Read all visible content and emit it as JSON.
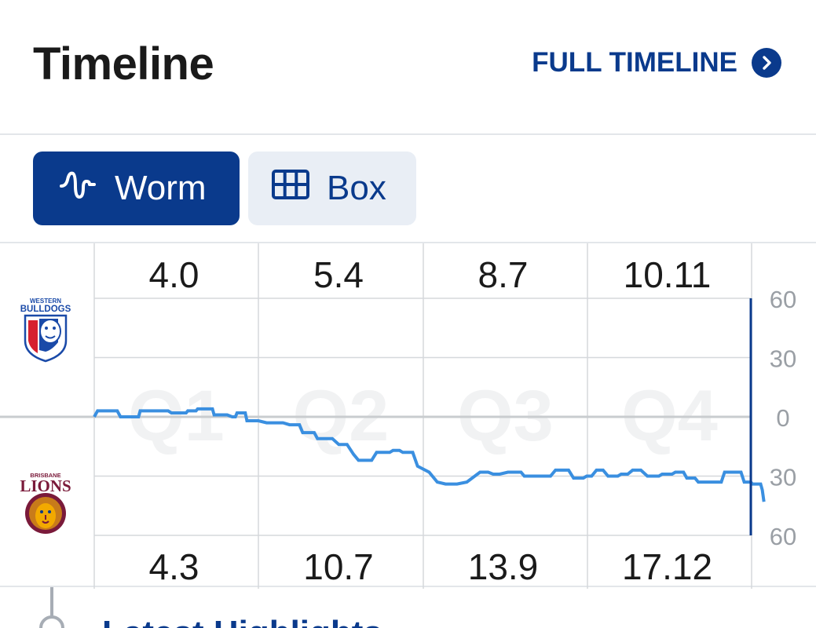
{
  "header": {
    "title": "Timeline",
    "full_timeline_label": "FULL TIMELINE"
  },
  "view_toggle": {
    "worm_label": "Worm",
    "box_label": "Box",
    "selected": "Worm"
  },
  "teams": {
    "home": {
      "name_line1": "WESTERN",
      "name_line2": "BULLDOGS",
      "colors": [
        "#1a4aa8",
        "#d6202f",
        "#ffffff"
      ]
    },
    "away": {
      "name_line1": "BRISBANE",
      "name_line2": "LIONS",
      "colors": [
        "#7a1a3a",
        "#f2a900",
        "#0a3a8c"
      ]
    }
  },
  "quarters": [
    "Q1",
    "Q2",
    "Q3",
    "Q4"
  ],
  "scores_top": [
    "4.0",
    "5.4",
    "8.7",
    "10.11"
  ],
  "scores_bottom": [
    "4.3",
    "10.7",
    "13.9",
    "17.12"
  ],
  "y_axis_labels": [
    "60",
    "30",
    "0",
    "30",
    "60"
  ],
  "colors": {
    "primary": "#0a3a8c",
    "worm": "#3a8fe0",
    "grid": "#d5d8dc",
    "zero": "#c9cccf",
    "watermark": "#f1f2f3"
  },
  "chart_data": {
    "type": "line",
    "title": "",
    "xlabel": "",
    "ylabel": "",
    "ylim": [
      -60,
      60
    ],
    "x_unit": "game progress (quarters)",
    "series": [
      {
        "name": "",
        "points": [
          [
            0.0,
            0
          ],
          [
            0.02,
            3
          ],
          [
            0.14,
            3
          ],
          [
            0.16,
            0
          ],
          [
            0.27,
            0
          ],
          [
            0.28,
            3
          ],
          [
            0.45,
            3
          ],
          [
            0.47,
            2
          ],
          [
            0.56,
            2
          ],
          [
            0.57,
            3
          ],
          [
            0.62,
            3
          ],
          [
            0.63,
            4
          ],
          [
            0.72,
            4
          ],
          [
            0.73,
            1
          ],
          [
            0.81,
            1
          ],
          [
            0.84,
            0
          ],
          [
            0.86,
            0
          ],
          [
            0.87,
            2
          ],
          [
            0.92,
            2
          ],
          [
            0.93,
            -2
          ],
          [
            1.0,
            -2
          ],
          [
            1.05,
            -3
          ],
          [
            1.15,
            -3
          ],
          [
            1.19,
            -4
          ],
          [
            1.25,
            -4
          ],
          [
            1.27,
            -8
          ],
          [
            1.34,
            -8
          ],
          [
            1.36,
            -11
          ],
          [
            1.45,
            -11
          ],
          [
            1.49,
            -14
          ],
          [
            1.54,
            -14
          ],
          [
            1.58,
            -19
          ],
          [
            1.61,
            -22
          ],
          [
            1.69,
            -22
          ],
          [
            1.72,
            -18
          ],
          [
            1.8,
            -18
          ],
          [
            1.82,
            -17
          ],
          [
            1.86,
            -17
          ],
          [
            1.88,
            -18
          ],
          [
            1.94,
            -18
          ],
          [
            1.97,
            -25
          ],
          [
            2.04,
            -28
          ],
          [
            2.09,
            -33
          ],
          [
            2.14,
            -34
          ],
          [
            2.21,
            -34
          ],
          [
            2.27,
            -33
          ],
          [
            2.35,
            -28
          ],
          [
            2.4,
            -28
          ],
          [
            2.43,
            -29
          ],
          [
            2.47,
            -29
          ],
          [
            2.52,
            -28
          ],
          [
            2.6,
            -28
          ],
          [
            2.62,
            -30
          ],
          [
            2.78,
            -30
          ],
          [
            2.81,
            -27
          ],
          [
            2.89,
            -27
          ],
          [
            2.92,
            -31
          ],
          [
            2.98,
            -31
          ],
          [
            3.0,
            -30
          ],
          [
            3.03,
            -30
          ],
          [
            3.06,
            -27
          ],
          [
            3.1,
            -27
          ],
          [
            3.13,
            -30
          ],
          [
            3.19,
            -30
          ],
          [
            3.21,
            -29
          ],
          [
            3.25,
            -29
          ],
          [
            3.28,
            -27
          ],
          [
            3.33,
            -27
          ],
          [
            3.37,
            -30
          ],
          [
            3.44,
            -30
          ],
          [
            3.46,
            -29
          ],
          [
            3.52,
            -29
          ],
          [
            3.54,
            -28
          ],
          [
            3.59,
            -28
          ],
          [
            3.61,
            -31
          ],
          [
            3.66,
            -31
          ],
          [
            3.68,
            -33
          ],
          [
            3.82,
            -33
          ],
          [
            3.84,
            -28
          ],
          [
            3.94,
            -28
          ],
          [
            3.96,
            -33
          ],
          [
            4.0,
            -33
          ],
          [
            4.01,
            -34
          ],
          [
            4.06,
            -34
          ],
          [
            4.07,
            -37
          ],
          [
            4.08,
            -43
          ]
        ]
      }
    ]
  },
  "latest_heading": "Latest Highlights"
}
